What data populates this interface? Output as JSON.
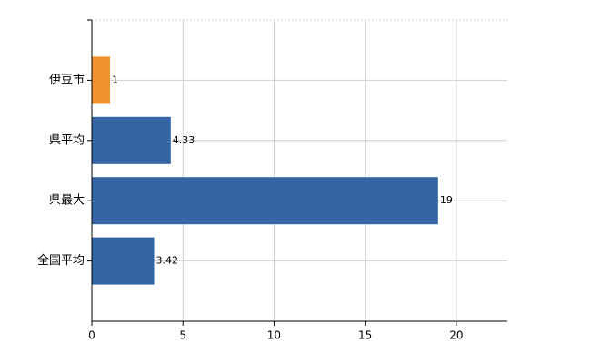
{
  "chart_data": {
    "type": "hbar",
    "categories": [
      "伊豆市",
      "県平均",
      "県最大",
      "全国平均"
    ],
    "values": [
      1,
      4.33,
      19,
      3.42
    ],
    "colors": [
      "#f0932f",
      "#3465a4",
      "#3465a4",
      "#3465a4"
    ],
    "xlim": [
      0,
      22.8
    ],
    "xticks": [
      0,
      5,
      10,
      15,
      20
    ],
    "grid": true
  }
}
